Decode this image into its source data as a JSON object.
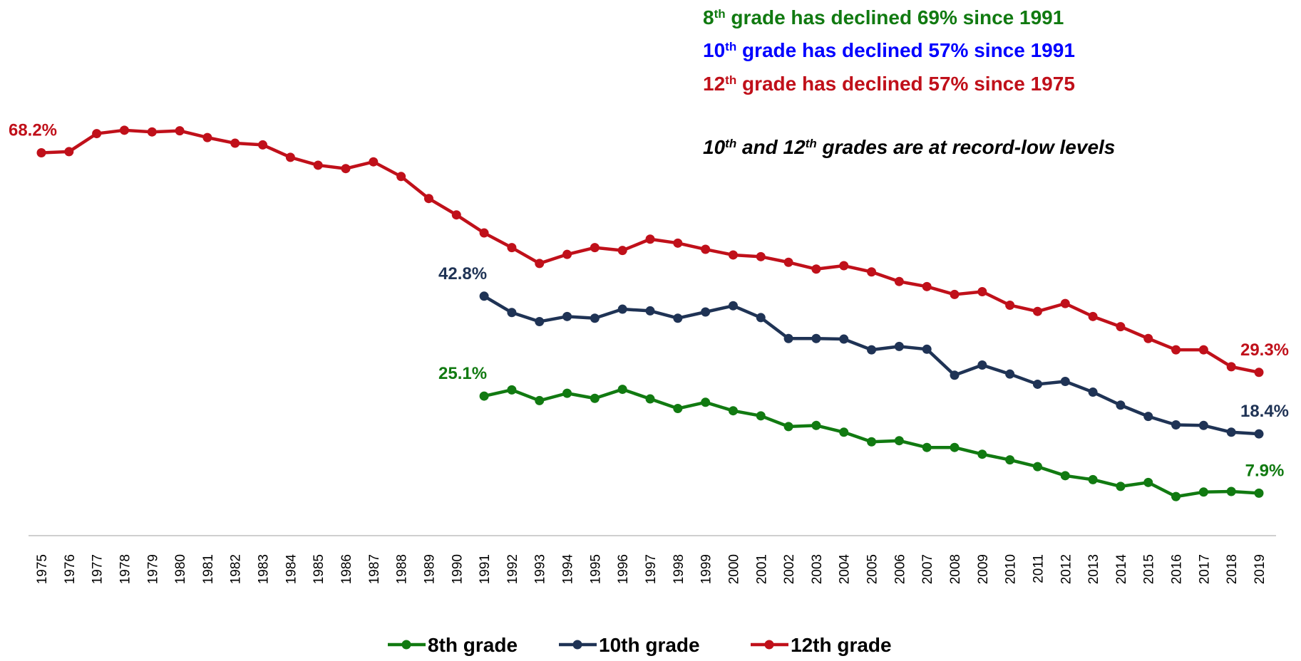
{
  "chart_data": {
    "type": "line",
    "categories": [
      "1975",
      "1976",
      "1977",
      "1978",
      "1979",
      "1980",
      "1981",
      "1982",
      "1983",
      "1984",
      "1985",
      "1986",
      "1987",
      "1988",
      "1989",
      "1990",
      "1991",
      "1992",
      "1993",
      "1994",
      "1995",
      "1996",
      "1997",
      "1998",
      "1999",
      "2000",
      "2001",
      "2002",
      "2003",
      "2004",
      "2005",
      "2006",
      "2007",
      "2008",
      "2009",
      "2010",
      "2011",
      "2012",
      "2013",
      "2014",
      "2015",
      "2016",
      "2017",
      "2018",
      "2019"
    ],
    "ylim": [
      0,
      80
    ],
    "series": [
      {
        "name": "8th grade",
        "color": "#117a11",
        "values": [
          null,
          null,
          null,
          null,
          null,
          null,
          null,
          null,
          null,
          null,
          null,
          null,
          null,
          null,
          null,
          null,
          25.1,
          26.2,
          24.3,
          25.6,
          24.7,
          26.3,
          24.6,
          22.9,
          24.0,
          22.5,
          21.6,
          19.7,
          19.9,
          18.7,
          17.0,
          17.2,
          16.0,
          16.0,
          14.8,
          13.8,
          12.6,
          11.0,
          10.3,
          9.1,
          9.8,
          7.3,
          8.1,
          8.2,
          7.9
        ],
        "value_labels": [
          null,
          null,
          null,
          null,
          null,
          null,
          null,
          null,
          null,
          null,
          null,
          null,
          null,
          null,
          null,
          null,
          "25.1%",
          null,
          null,
          null,
          null,
          null,
          null,
          null,
          null,
          null,
          null,
          null,
          null,
          null,
          null,
          null,
          null,
          null,
          null,
          null,
          null,
          null,
          null,
          null,
          null,
          null,
          null,
          null,
          "7.9%"
        ]
      },
      {
        "name": "10th grade",
        "color": "#1f3355",
        "values": [
          null,
          null,
          null,
          null,
          null,
          null,
          null,
          null,
          null,
          null,
          null,
          null,
          null,
          null,
          null,
          null,
          42.8,
          39.9,
          38.3,
          39.2,
          38.9,
          40.5,
          40.2,
          38.9,
          40.0,
          41.1,
          39.0,
          35.3,
          35.3,
          35.2,
          33.3,
          33.9,
          33.4,
          28.8,
          30.6,
          29.0,
          27.2,
          27.7,
          25.8,
          23.5,
          21.5,
          20.0,
          19.9,
          18.7,
          18.4
        ],
        "value_labels": [
          null,
          null,
          null,
          null,
          null,
          null,
          null,
          null,
          null,
          null,
          null,
          null,
          null,
          null,
          null,
          null,
          "42.8%",
          null,
          null,
          null,
          null,
          null,
          null,
          null,
          null,
          null,
          null,
          null,
          null,
          null,
          null,
          null,
          null,
          null,
          null,
          null,
          null,
          null,
          null,
          null,
          null,
          null,
          null,
          null,
          "18.4%"
        ]
      },
      {
        "name": "12th grade",
        "color": "#c0101a",
        "values": [
          68.2,
          68.4,
          71.6,
          72.2,
          71.9,
          72.1,
          70.9,
          69.9,
          69.6,
          67.4,
          66.0,
          65.4,
          66.6,
          64.0,
          60.1,
          57.2,
          54.0,
          51.4,
          48.6,
          50.2,
          51.4,
          50.9,
          52.9,
          52.2,
          51.1,
          50.1,
          49.8,
          48.8,
          47.6,
          48.2,
          47.1,
          45.4,
          44.5,
          43.1,
          43.6,
          41.2,
          40.1,
          41.5,
          39.2,
          37.4,
          35.3,
          33.3,
          33.3,
          30.3,
          29.3
        ],
        "value_labels": [
          "68.2%",
          null,
          null,
          null,
          null,
          null,
          null,
          null,
          null,
          null,
          null,
          null,
          null,
          null,
          null,
          null,
          null,
          null,
          null,
          null,
          null,
          null,
          null,
          null,
          null,
          null,
          null,
          null,
          null,
          null,
          null,
          null,
          null,
          null,
          null,
          null,
          null,
          null,
          null,
          null,
          null,
          null,
          null,
          null,
          "29.3%"
        ]
      }
    ],
    "annotations": [
      {
        "color": "#117a11",
        "italic": false,
        "parts": [
          {
            "text": "8"
          },
          {
            "text": "th",
            "sup": true
          },
          {
            "text": " grade has declined 69% since 1991"
          }
        ]
      },
      {
        "color": "#0000ff",
        "italic": false,
        "parts": [
          {
            "text": "10"
          },
          {
            "text": "th",
            "sup": true
          },
          {
            "text": " grade has declined 57% since 1991"
          }
        ]
      },
      {
        "color": "#c0101a",
        "italic": false,
        "parts": [
          {
            "text": "12"
          },
          {
            "text": "th",
            "sup": true
          },
          {
            "text": " grade has declined 57% since 1975"
          }
        ]
      },
      {
        "color": "#000000",
        "italic": true,
        "parts": [
          {
            "text": "10"
          },
          {
            "text": "th",
            "sup": true
          },
          {
            "text": " and 12"
          },
          {
            "text": "th",
            "sup": true
          },
          {
            "text": " grades are at record-low levels"
          }
        ]
      }
    ]
  }
}
